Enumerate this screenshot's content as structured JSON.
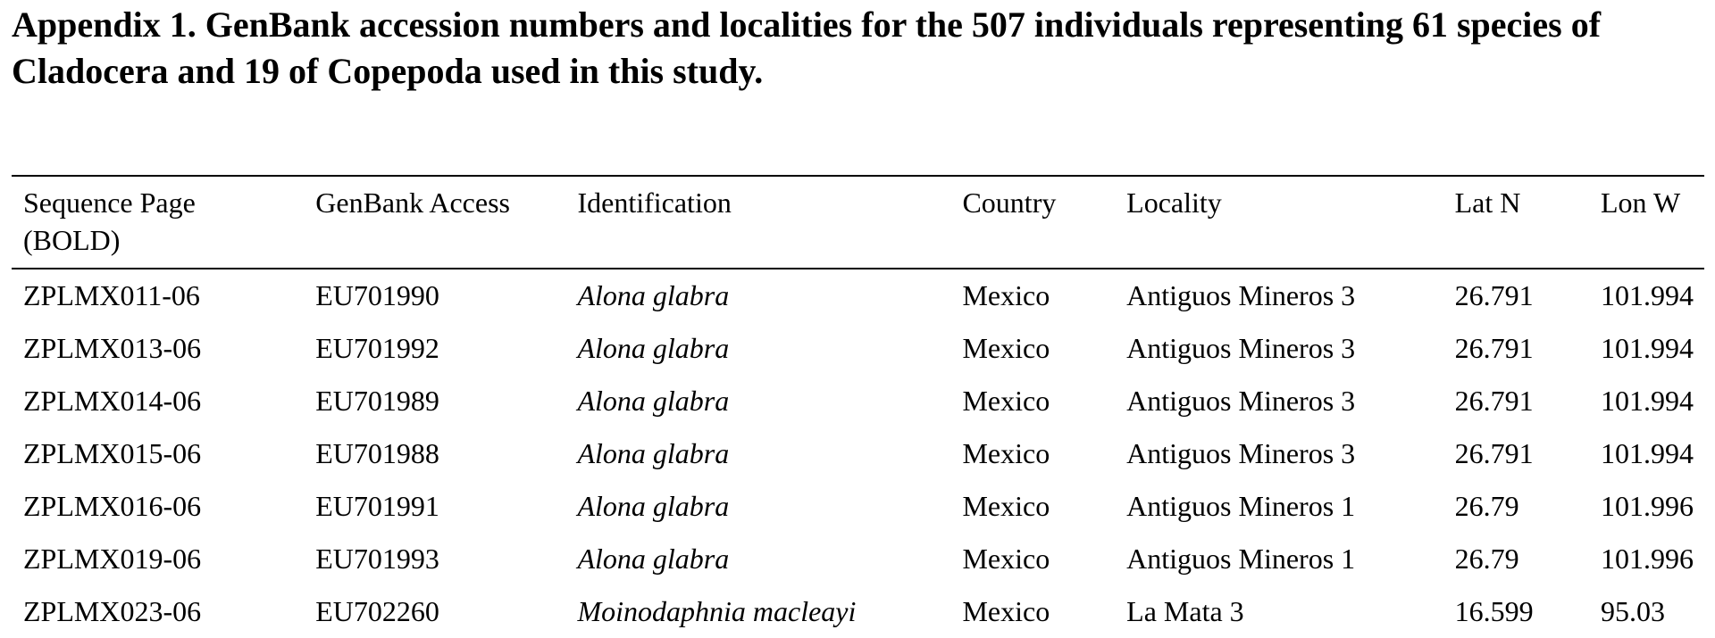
{
  "caption": {
    "text": "Appendix 1. GenBank accession numbers and localities for the 507 individuals representing 61 species of Cladocera and 19 of Copepoda used in this study."
  },
  "table": {
    "headers": [
      "Sequence Page (BOLD)",
      "GenBank Access",
      "Identification",
      "Country",
      "Locality",
      "Lat N",
      "Lon W"
    ],
    "rows": [
      [
        "ZPLMX011-06",
        "EU701990",
        "Alona glabra",
        "Mexico",
        "Antiguos Mineros 3",
        "26.791",
        "101.994"
      ],
      [
        "ZPLMX013-06",
        "EU701992",
        "Alona glabra",
        "Mexico",
        "Antiguos Mineros 3",
        "26.791",
        "101.994"
      ],
      [
        "ZPLMX014-06",
        "EU701989",
        "Alona glabra",
        "Mexico",
        "Antiguos Mineros 3",
        "26.791",
        "101.994"
      ],
      [
        "ZPLMX015-06",
        "EU701988",
        "Alona glabra",
        "Mexico",
        "Antiguos Mineros 3",
        "26.791",
        "101.994"
      ],
      [
        "ZPLMX016-06",
        "EU701991",
        "Alona glabra",
        "Mexico",
        "Antiguos Mineros 1",
        "26.79",
        "101.996"
      ],
      [
        "ZPLMX019-06",
        "EU701993",
        "Alona glabra",
        "Mexico",
        "Antiguos Mineros 1",
        "26.79",
        "101.996"
      ],
      [
        "ZPLMX023-06",
        "EU702260",
        "Moinodaphnia macleayi",
        "Mexico",
        "La Mata 3",
        "16.599",
        "95.03"
      ]
    ]
  }
}
